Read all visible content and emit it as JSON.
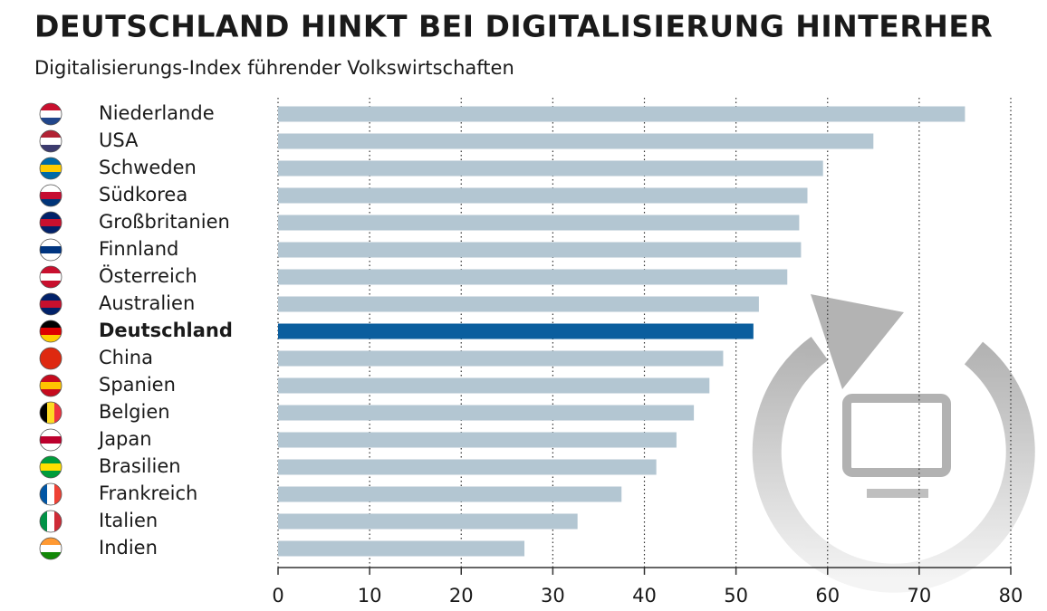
{
  "chart_data": {
    "type": "hbar",
    "title": "DEUTSCHLAND HINKT BEI DIGITALISIERUNG HINTERHER",
    "subtitle": "Digitalisierungs-Index führender Volkswirtschaften",
    "categories": [
      "Niederlande",
      "USA",
      "Schweden",
      "Südkorea",
      "Großbritanien",
      "Finnland",
      "Österreich",
      "Australien",
      "Deutschland",
      "China",
      "Spanien",
      "Belgien",
      "Japan",
      "Brasilien",
      "Frankreich",
      "Italien",
      "Indien"
    ],
    "values": [
      75.0,
      65.0,
      59.5,
      57.8,
      56.9,
      57.1,
      55.6,
      52.5,
      51.9,
      48.6,
      47.1,
      45.4,
      43.5,
      41.3,
      37.5,
      32.7,
      26.9
    ],
    "color": "#b3c6d2",
    "highlight_color": "#0b5e9e",
    "highlight_index": 8,
    "xlim": [
      0,
      80
    ],
    "xticks": [
      0,
      10,
      20,
      30,
      40,
      50,
      60,
      70,
      80
    ],
    "grid": true
  }
}
